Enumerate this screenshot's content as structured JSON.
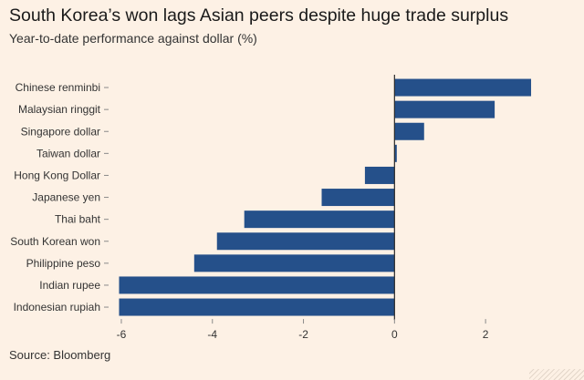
{
  "header": {
    "title": "South Korea’s won lags Asian peers despite huge trade surplus",
    "subtitle": "Year-to-date performance against dollar (%)"
  },
  "footer": {
    "source": "Source: Bloomberg"
  },
  "colors": {
    "bar": "#25508a",
    "background": "#fdf1e5",
    "zero_line": "#2b2b2b",
    "tick": "#8a8a8a"
  },
  "chart_data": {
    "type": "bar",
    "orientation": "horizontal",
    "title": "South Korea’s won lags Asian peers despite huge trade surplus",
    "subtitle": "Year-to-date performance against dollar (%)",
    "categories": [
      "Chinese renminbi",
      "Malaysian ringgit",
      "Singapore dollar",
      "Taiwan dollar",
      "Hong Kong Dollar",
      "Japanese yen",
      "Thai baht",
      "South Korean won",
      "Philippine peso",
      "Indian rupee",
      "Indonesian rupiah"
    ],
    "values": [
      3.0,
      2.2,
      0.65,
      0.05,
      -0.65,
      -1.6,
      -3.3,
      -3.9,
      -4.4,
      -6.05,
      -6.05
    ],
    "xlim": [
      -6.2,
      3.2
    ],
    "xticks": [
      -6,
      -4,
      -2,
      0,
      2
    ],
    "xtick_labels": [
      "-6",
      "-4",
      "-2",
      "0",
      "2"
    ],
    "grid": false,
    "xlabel": "",
    "ylabel": ""
  }
}
